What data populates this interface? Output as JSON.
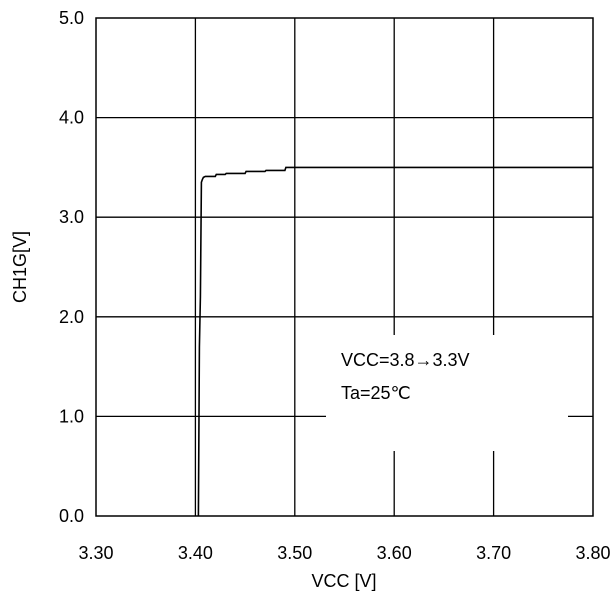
{
  "chart_data": {
    "type": "line",
    "title": "",
    "xlabel": "VCC [V]",
    "ylabel": "CH1G[V]",
    "xlim": [
      3.3,
      3.8
    ],
    "ylim": [
      0.0,
      5.0
    ],
    "x_ticks": [
      "3.30",
      "3.40",
      "3.50",
      "3.60",
      "3.70",
      "3.80"
    ],
    "y_ticks": [
      "0.0",
      "1.0",
      "2.0",
      "3.0",
      "4.0",
      "5.0"
    ],
    "grid": true,
    "series": [
      {
        "x": [
          3.403,
          3.404,
          3.405,
          3.406,
          3.407,
          3.408,
          3.41,
          3.42,
          3.421,
          3.43,
          3.431,
          3.45,
          3.451,
          3.47,
          3.471,
          3.49,
          3.491,
          3.8
        ],
        "y": [
          0.0,
          1.7,
          2.2,
          3.35,
          3.38,
          3.4,
          3.41,
          3.41,
          3.43,
          3.43,
          3.44,
          3.44,
          3.46,
          3.46,
          3.47,
          3.47,
          3.5,
          3.5
        ]
      }
    ],
    "annotations": [
      "VCC=3.8→3.3V",
      "Ta=25℃"
    ]
  }
}
